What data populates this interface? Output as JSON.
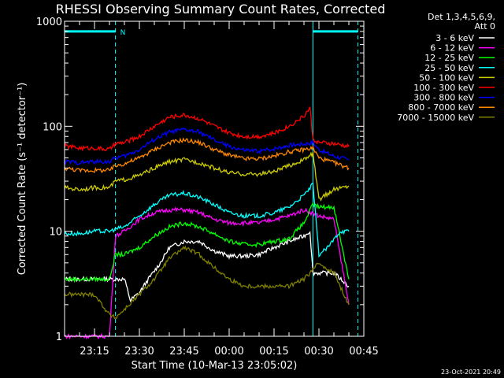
{
  "chart_data": {
    "type": "line",
    "title": "RHESSI Observing Summary Count Rates, Corrected",
    "xlabel": "Start Time (10-Mar-13 23:05:02)",
    "ylabel": "Corrected Count Rate (s⁻¹ detector⁻¹)",
    "yscale": "log",
    "ylim": [
      1,
      1000
    ],
    "y_ticks": [
      1,
      10,
      100,
      1000
    ],
    "y_tick_labels": [
      "1",
      "10",
      "100",
      "1000"
    ],
    "xlim_minutes": [
      0,
      100
    ],
    "x_ticks_minutes": [
      10,
      25,
      40,
      55,
      70,
      85,
      100
    ],
    "x_tick_labels": [
      "23:15",
      "23:30",
      "23:45",
      "00:00",
      "00:15",
      "00:30",
      "00:45"
    ],
    "legend_header": [
      "Det 1,3,4,5,6,9,",
      "Att 0"
    ],
    "legend_position": "right",
    "vertical_lines_minutes": [
      17,
      83,
      98
    ],
    "flag_bars": [
      {
        "label": "N",
        "start_minutes": 0,
        "end_minutes": 17,
        "y": 800
      },
      {
        "label": "",
        "start_minutes": 83,
        "end_minutes": 98,
        "y": 800
      }
    ],
    "series": [
      {
        "name": "3 - 6 keV",
        "color": "#ffffff",
        "x": [
          0,
          10,
          15,
          20,
          22,
          25,
          28,
          32,
          35,
          40,
          45,
          50,
          55,
          60,
          65,
          70,
          75,
          80,
          82,
          83,
          85,
          90,
          95
        ],
        "y": [
          3.5,
          3.5,
          3.5,
          3.5,
          2.2,
          2.6,
          3.5,
          5,
          7,
          8,
          8,
          6.5,
          5.8,
          5.8,
          6,
          7,
          8,
          9,
          10,
          4,
          4,
          4,
          3
        ]
      },
      {
        "name": "6 - 12 keV",
        "color": "#ff00ff",
        "x": [
          0,
          10,
          15,
          17,
          20,
          25,
          30,
          35,
          40,
          45,
          50,
          55,
          60,
          65,
          70,
          75,
          80,
          85,
          90,
          95
        ],
        "y": [
          1,
          1,
          1,
          9,
          10,
          13,
          15,
          16,
          16,
          15,
          13,
          12,
          12,
          12,
          13,
          14,
          16,
          14,
          13,
          2
        ]
      },
      {
        "name": "12 - 25 keV",
        "color": "#00ff00",
        "x": [
          0,
          10,
          15,
          17,
          20,
          25,
          30,
          35,
          40,
          45,
          50,
          55,
          60,
          65,
          70,
          75,
          80,
          83,
          85,
          90,
          95
        ],
        "y": [
          3.5,
          3.5,
          3.5,
          6,
          6,
          7,
          9,
          11,
          12,
          11,
          9.5,
          8,
          7.5,
          7.5,
          8,
          8.5,
          12,
          18,
          17,
          17,
          3.5
        ]
      },
      {
        "name": "25 - 50 keV",
        "color": "#00ffff",
        "x": [
          0,
          5,
          10,
          15,
          17,
          20,
          25,
          30,
          35,
          40,
          45,
          50,
          55,
          60,
          65,
          70,
          75,
          80,
          83,
          85,
          88,
          92,
          95
        ],
        "y": [
          9.5,
          9.5,
          10,
          10,
          10.5,
          11,
          14,
          18,
          22,
          23,
          21,
          18,
          15,
          14,
          14,
          15,
          17,
          22,
          28,
          6,
          7,
          10,
          10
        ]
      },
      {
        "name": "50 - 100 keV",
        "color": "#cccc00",
        "x": [
          0,
          5,
          10,
          15,
          17,
          20,
          25,
          30,
          35,
          40,
          45,
          50,
          55,
          60,
          65,
          70,
          75,
          80,
          83,
          85,
          90,
          95
        ],
        "y": [
          26,
          25,
          26,
          26,
          30,
          31,
          34,
          40,
          46,
          48,
          45,
          40,
          36,
          35,
          35,
          37,
          42,
          48,
          55,
          20,
          25,
          27
        ]
      },
      {
        "name": "100 - 300 keV",
        "color": "#ff0000",
        "x": [
          0,
          5,
          10,
          15,
          17,
          20,
          25,
          30,
          35,
          40,
          45,
          50,
          55,
          60,
          65,
          70,
          75,
          80,
          82,
          83,
          85,
          90,
          95
        ],
        "y": [
          65,
          62,
          62,
          60,
          68,
          70,
          80,
          100,
          122,
          128,
          118,
          100,
          86,
          80,
          80,
          86,
          100,
          125,
          150,
          75,
          70,
          68,
          64
        ]
      },
      {
        "name": "300 - 800 keV",
        "color": "#0000ff",
        "x": [
          0,
          5,
          10,
          15,
          17,
          20,
          25,
          30,
          35,
          40,
          45,
          50,
          55,
          60,
          65,
          70,
          75,
          80,
          83,
          85,
          90,
          95
        ],
        "y": [
          46,
          45,
          46,
          46,
          50,
          52,
          60,
          75,
          88,
          93,
          88,
          74,
          64,
          59,
          58,
          61,
          66,
          68,
          70,
          60,
          52,
          48
        ]
      },
      {
        "name": "800 - 7000 keV",
        "color": "#ff8800",
        "x": [
          0,
          5,
          10,
          15,
          17,
          20,
          25,
          30,
          35,
          40,
          45,
          50,
          55,
          60,
          65,
          70,
          75,
          80,
          83,
          85,
          90,
          95
        ],
        "y": [
          40,
          38,
          38,
          38,
          42,
          44,
          50,
          60,
          70,
          74,
          70,
          60,
          53,
          49,
          49,
          52,
          57,
          60,
          62,
          50,
          45,
          40
        ]
      },
      {
        "name": "7000 - 15000 keV",
        "color": "#808000",
        "x": [
          0,
          5,
          10,
          15,
          17,
          20,
          25,
          30,
          35,
          40,
          45,
          50,
          55,
          60,
          65,
          70,
          75,
          80,
          82,
          85,
          90,
          95
        ],
        "y": [
          2.5,
          2.5,
          2.5,
          1.6,
          1.5,
          1.8,
          2.5,
          3.5,
          5.5,
          7,
          6,
          4.5,
          3.5,
          3,
          3,
          3,
          3,
          3.5,
          4,
          5,
          4,
          2
        ]
      }
    ]
  },
  "timestamp": "23-Oct-2021 20:49"
}
